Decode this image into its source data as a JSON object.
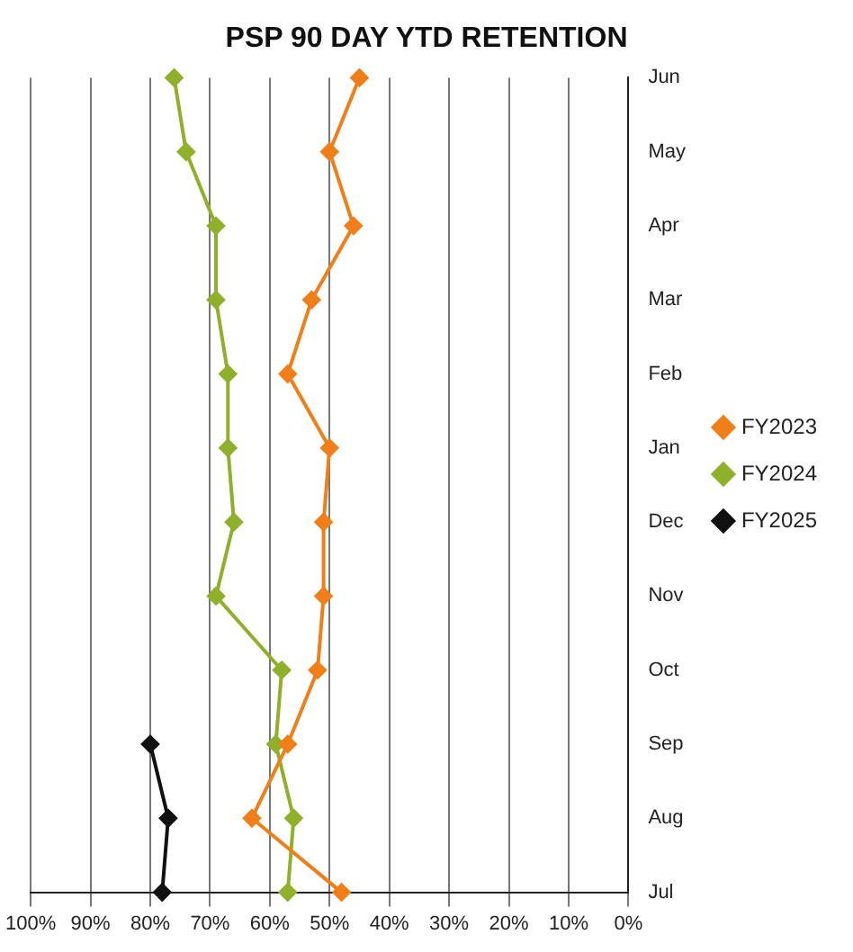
{
  "chart_data": {
    "type": "line",
    "title": "PSP 90 DAY YTD RETENTION",
    "orientation": "horizontal",
    "categories": [
      "Jun",
      "May",
      "Apr",
      "Mar",
      "Feb",
      "Jan",
      "Dec",
      "Nov",
      "Oct",
      "Sep",
      "Aug",
      "Jul"
    ],
    "series": [
      {
        "name": "FY2023",
        "color": "#f07f1a",
        "values": [
          45,
          50,
          46,
          53,
          57,
          50,
          51,
          51,
          52,
          57,
          63,
          48
        ]
      },
      {
        "name": "FY2024",
        "color": "#8fb02a",
        "values": [
          76,
          74,
          69,
          69,
          67,
          67,
          66,
          69,
          58,
          59,
          56,
          57
        ]
      },
      {
        "name": "FY2025",
        "color": "#111111",
        "values": [
          null,
          null,
          null,
          null,
          null,
          null,
          null,
          null,
          null,
          80,
          77,
          78
        ]
      }
    ],
    "xlim": [
      100,
      0
    ],
    "xticks": [
      {
        "value": 100,
        "label": "100%"
      },
      {
        "value": 90,
        "label": "90%"
      },
      {
        "value": 80,
        "label": "80%"
      },
      {
        "value": 70,
        "label": "70%"
      },
      {
        "value": 60,
        "label": "60%"
      },
      {
        "value": 50,
        "label": "50%"
      },
      {
        "value": 40,
        "label": "40%"
      },
      {
        "value": 30,
        "label": "30%"
      },
      {
        "value": 20,
        "label": "20%"
      },
      {
        "value": 10,
        "label": "10%"
      },
      {
        "value": 0,
        "label": "0%"
      }
    ],
    "grid": "x",
    "legend": "right",
    "marker": "diamond",
    "line_style": "solid"
  }
}
